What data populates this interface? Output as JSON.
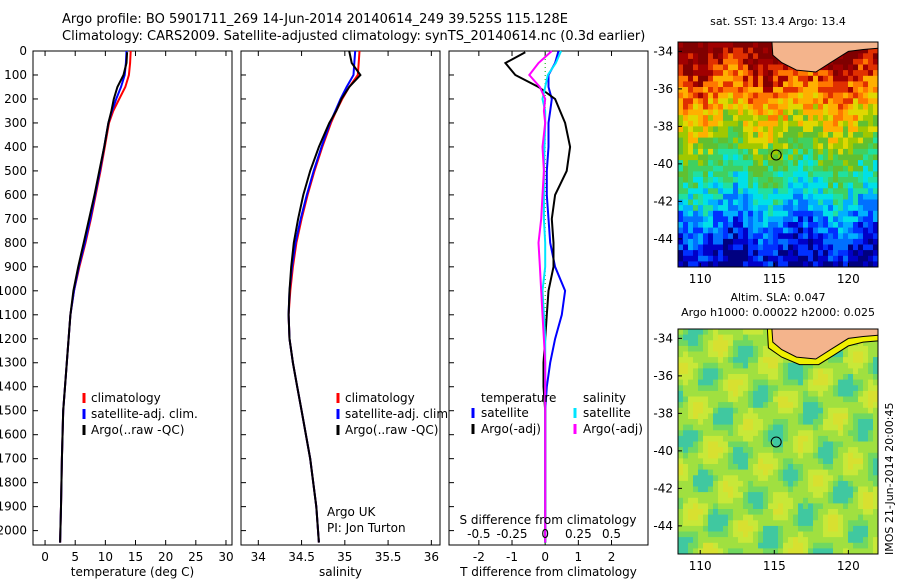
{
  "header": {
    "line1": "Argo profile: BO 5901711_269 14-Jun-2014 20140614_249 39.525S 115.128E",
    "line2": "Climatology: CARS2009. Satellite-adjusted climatology: synTS_20140614.nc (0.3d earlier)"
  },
  "colors": {
    "climatology": "#ff0000",
    "satellite": "#0000ff",
    "argo": "#000000",
    "sat_salinity": "#00e5ff",
    "argo_salinity": "#ff00ff",
    "land": "#f4b48c"
  },
  "chart_data": [
    {
      "type": "line",
      "xlabel": "temperature (deg C)",
      "xticks": [
        0,
        5,
        10,
        15,
        20,
        25,
        30
      ],
      "xlim": [
        -2,
        31
      ],
      "yticks": [
        0,
        100,
        200,
        300,
        400,
        500,
        600,
        700,
        800,
        900,
        1000,
        1100,
        1200,
        1300,
        1400,
        1500,
        1600,
        1700,
        1800,
        1900,
        2000
      ],
      "ylim": [
        0,
        2060
      ],
      "legend": [
        "climatology",
        "satellite-adj. clim.",
        "Argo(..raw -QC)"
      ],
      "series": [
        {
          "name": "climatology",
          "color": "#ff0000",
          "x": [
            14.2,
            14.1,
            13.9,
            13.3,
            12.3,
            11.3,
            10.6,
            9.9,
            9.2,
            8.4,
            7.6,
            6.7,
            5.7,
            4.8,
            4.2,
            3.9,
            3.6,
            3.3,
            3.0,
            2.8,
            2.65,
            2.5
          ],
          "y": [
            0,
            50,
            100,
            150,
            200,
            250,
            300,
            400,
            500,
            600,
            700,
            800,
            900,
            1000,
            1100,
            1200,
            1300,
            1400,
            1500,
            1700,
            1900,
            2050
          ]
        },
        {
          "name": "satellite-adj. clim.",
          "color": "#0000ff",
          "x": [
            13.5,
            13.4,
            13.2,
            12.6,
            11.8,
            11.1,
            10.5,
            9.8,
            9.1,
            8.3,
            7.5,
            6.6,
            5.6,
            4.8,
            4.2,
            3.9,
            3.6,
            3.3,
            3.0,
            2.8,
            2.65,
            2.5
          ],
          "y": [
            0,
            50,
            100,
            150,
            200,
            250,
            300,
            400,
            500,
            600,
            700,
            800,
            900,
            1000,
            1100,
            1200,
            1300,
            1400,
            1500,
            1700,
            1900,
            2050
          ]
        },
        {
          "name": "Argo(..raw -QC)",
          "color": "#000000",
          "x": [
            13.6,
            13.5,
            13.0,
            12.0,
            11.4,
            11.0,
            10.5,
            9.8,
            9.0,
            8.2,
            7.3,
            6.4,
            5.5,
            4.7,
            4.2,
            3.9,
            3.6,
            3.3,
            3.0,
            2.8,
            2.65,
            2.5
          ],
          "y": [
            5,
            50,
            100,
            150,
            200,
            250,
            300,
            400,
            500,
            600,
            700,
            800,
            900,
            1000,
            1100,
            1200,
            1300,
            1400,
            1500,
            1700,
            1900,
            2050
          ]
        }
      ]
    },
    {
      "type": "line",
      "xlabel": "salinity",
      "xticks": [
        34,
        34.5,
        35,
        35.5,
        36
      ],
      "xlim": [
        33.8,
        36.1
      ],
      "ylim": [
        0,
        2060
      ],
      "legend": [
        "climatology",
        "satellite-adj. clim.",
        "Argo(..raw -QC)"
      ],
      "annotation": [
        "Argo UK",
        "PI: Jon Turton"
      ],
      "series": [
        {
          "name": "climatology",
          "color": "#ff0000",
          "x": [
            35.17,
            35.16,
            35.15,
            35.05,
            34.97,
            34.9,
            34.84,
            34.74,
            34.65,
            34.57,
            34.5,
            34.44,
            34.4,
            34.37,
            34.35,
            34.36,
            34.4,
            34.45,
            34.5,
            34.6,
            34.67,
            34.7
          ],
          "y": [
            0,
            50,
            100,
            150,
            200,
            250,
            300,
            400,
            500,
            600,
            700,
            800,
            900,
            1000,
            1100,
            1200,
            1300,
            1400,
            1500,
            1700,
            1900,
            2050
          ]
        },
        {
          "name": "satellite-adj. clim.",
          "color": "#0000ff",
          "x": [
            35.12,
            35.11,
            35.1,
            35.02,
            34.95,
            34.89,
            34.83,
            34.73,
            34.64,
            34.56,
            34.49,
            34.43,
            34.39,
            34.36,
            34.35,
            34.36,
            34.4,
            34.45,
            34.5,
            34.6,
            34.67,
            34.7
          ],
          "y": [
            0,
            50,
            100,
            150,
            200,
            250,
            300,
            400,
            500,
            600,
            700,
            800,
            900,
            1000,
            1100,
            1200,
            1300,
            1400,
            1500,
            1700,
            1900,
            2050
          ]
        },
        {
          "name": "Argo(..raw -QC)",
          "color": "#000000",
          "x": [
            35.05,
            35.08,
            35.18,
            35.05,
            34.96,
            34.9,
            34.82,
            34.7,
            34.6,
            34.52,
            34.46,
            34.41,
            34.38,
            34.36,
            34.35,
            34.36,
            34.4,
            34.45,
            34.5,
            34.6,
            34.67,
            34.7
          ],
          "y": [
            0,
            50,
            100,
            150,
            200,
            250,
            300,
            400,
            500,
            600,
            700,
            800,
            900,
            1000,
            1100,
            1200,
            1300,
            1400,
            1500,
            1700,
            1900,
            2050
          ]
        }
      ]
    },
    {
      "type": "line",
      "xlabel": "T difference from climatology",
      "xlabel_top": "S difference from climatology",
      "xticks": [
        -2,
        -1,
        0,
        1,
        2
      ],
      "xticks_top": [
        "-0.5",
        "-0.25",
        "0",
        "0.25",
        "0.5"
      ],
      "xlim": [
        -2.9,
        3.1
      ],
      "ylim": [
        0,
        2060
      ],
      "legend_left_title": "temperature",
      "legend_right_title": "salinity",
      "legend_left": [
        "satellite",
        "Argo(-adj)"
      ],
      "legend_right": [
        "satellite",
        "Argo(-adj)"
      ],
      "series": [
        {
          "name": "satellite",
          "color": "#0000ff",
          "x": [
            0.4,
            0.3,
            0.1,
            0.1,
            0.2,
            0.15,
            0.1,
            0.1,
            0.05,
            0.05,
            0.1,
            0.15,
            0.3,
            0.6,
            0.5,
            0.3,
            0.15,
            0.05,
            0.0,
            0.0,
            0.0,
            0.0
          ],
          "y": [
            0,
            50,
            100,
            150,
            200,
            250,
            300,
            400,
            500,
            600,
            700,
            800,
            900,
            1000,
            1100,
            1200,
            1300,
            1400,
            1500,
            1700,
            1900,
            2050
          ]
        },
        {
          "name": "Argo(-adj)",
          "color": "#000000",
          "x": [
            -0.6,
            -1.2,
            -0.9,
            -0.2,
            0.3,
            0.45,
            0.6,
            0.75,
            0.65,
            0.3,
            0.2,
            0.25,
            0.25,
            0.1,
            0.05,
            0.0,
            -0.05,
            -0.05,
            0.0,
            0.0,
            0.0,
            0.0
          ],
          "y": [
            5,
            50,
            100,
            150,
            200,
            250,
            300,
            400,
            500,
            600,
            700,
            800,
            900,
            1000,
            1100,
            1200,
            1300,
            1400,
            1500,
            1700,
            1900,
            2050
          ]
        }
      ]
    },
    {
      "type": "heatmap",
      "title": "sat. SST: 13.4  Argo: 13.4",
      "xticks": [
        110,
        115,
        120
      ],
      "yticks": [
        -34,
        -36,
        -38,
        -40,
        -42,
        -44
      ],
      "xlim": [
        108.5,
        122
      ],
      "ylim": [
        -45.5,
        -33.5
      ],
      "marker": {
        "lon": 115.128,
        "lat": -39.525
      }
    },
    {
      "type": "heatmap",
      "title_lines": [
        "Altim. SLA: 0.047",
        "Argo h1000: 0.00022 h2000: 0.025"
      ],
      "xticks": [
        110,
        115,
        120
      ],
      "yticks": [
        -34,
        -36,
        -38,
        -40,
        -42,
        -44
      ],
      "xlim": [
        108.5,
        122
      ],
      "ylim": [
        -45.5,
        -33.5
      ],
      "marker": {
        "lon": 115.128,
        "lat": -39.525
      },
      "side_label": "IMOS 21-Jun-2014 20:00:45"
    }
  ]
}
